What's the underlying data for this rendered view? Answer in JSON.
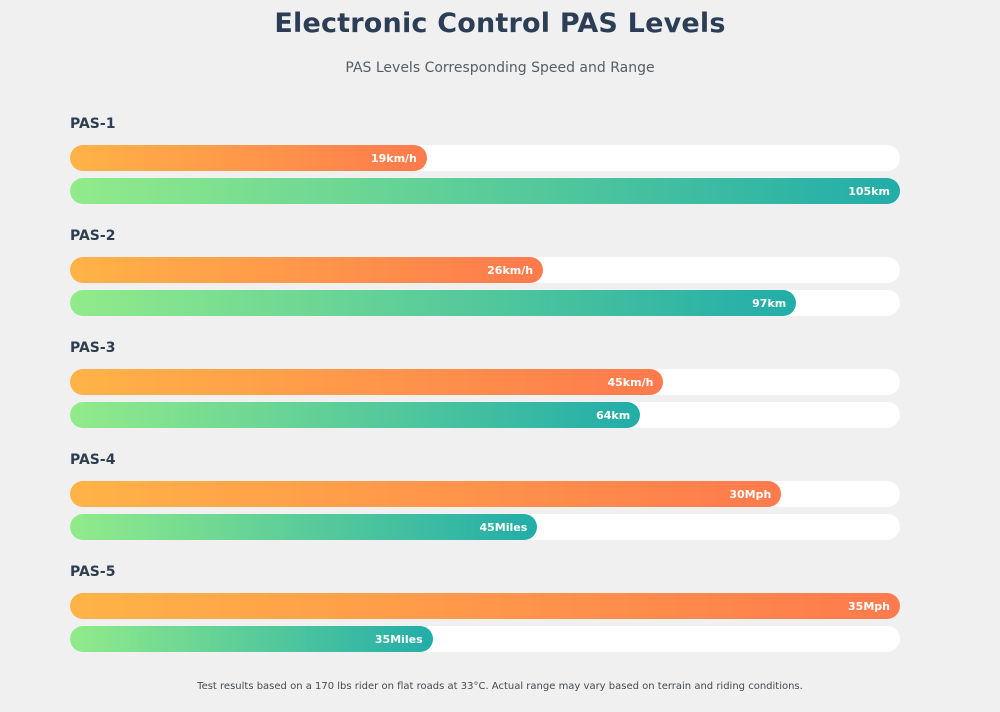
{
  "header": {
    "title": "Electronic Control PAS Levels",
    "subtitle": "PAS Levels Corresponding Speed and Range"
  },
  "footnote": "Test results based on a 170 lbs rider on flat roads at 33°C. Actual range may vary based on terrain and riding conditions.",
  "colors": {
    "speed_start": "#ffb347",
    "speed_end": "#ff7a4d",
    "range_start": "#92eb8a",
    "range_end": "#22ada9",
    "track": "#ffffff"
  },
  "chart_data": {
    "type": "bar",
    "categories": [
      "PAS-1",
      "PAS-2",
      "PAS-3",
      "PAS-4",
      "PAS-5"
    ],
    "series": [
      {
        "values": [
          0.43,
          0.57,
          0.715,
          0.857,
          1.0
        ],
        "labels": [
          "19km/h",
          "26km/h",
          "45km/h",
          "30Mph",
          "35Mph"
        ]
      },
      {
        "values": [
          1.0,
          0.875,
          0.687,
          0.563,
          0.437
        ],
        "labels": [
          "105km",
          "97km",
          "64km",
          "45Miles",
          "35Miles"
        ]
      }
    ]
  }
}
